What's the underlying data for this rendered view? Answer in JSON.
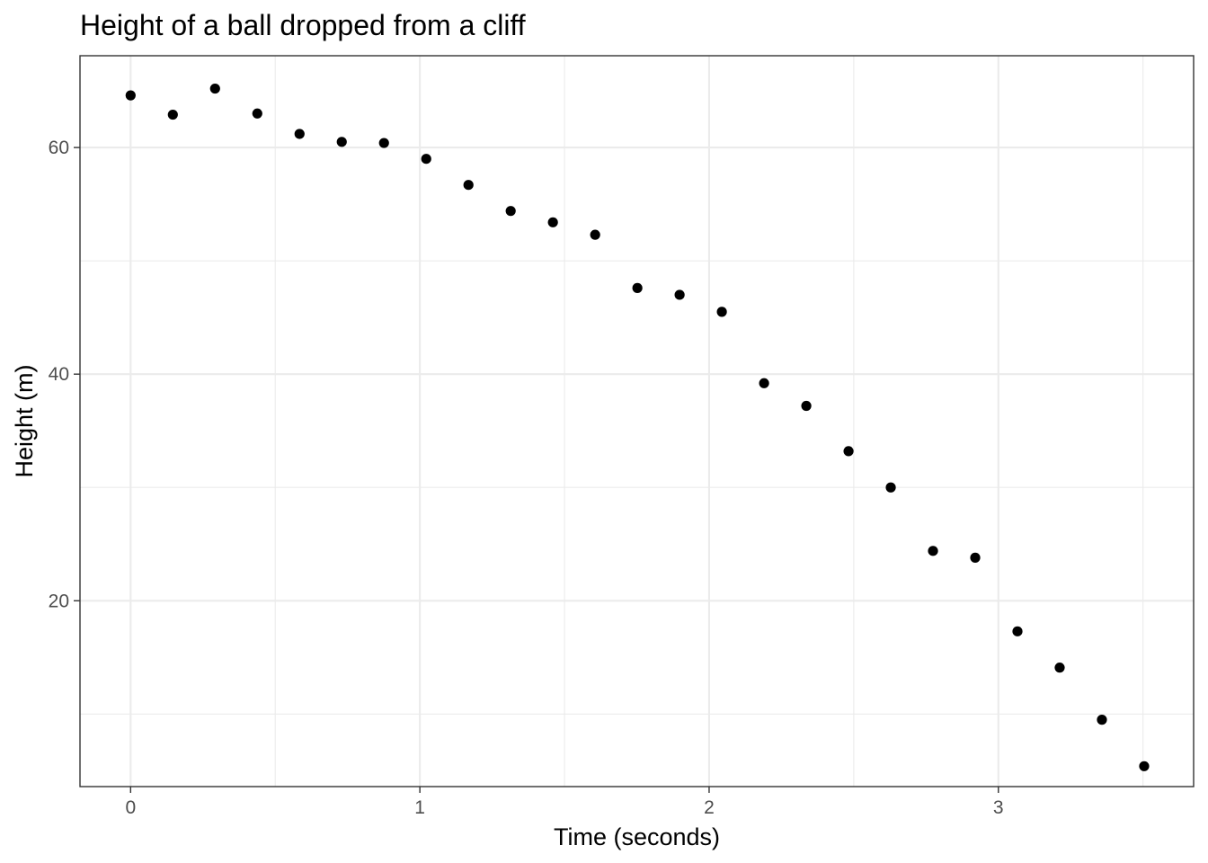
{
  "chart_data": {
    "type": "scatter",
    "title": "Height of a ball dropped from a cliff",
    "xlabel": "Time (seconds)",
    "ylabel": "Height (m)",
    "xlim": [
      -0.175,
      3.675
    ],
    "ylim": [
      3.6,
      68.1
    ],
    "x_ticks": [
      0,
      1,
      2,
      3
    ],
    "x_tick_labels": [
      "0",
      "1",
      "2",
      "3"
    ],
    "x_minor_ticks": [
      0.5,
      1.5,
      2.5,
      3.5
    ],
    "y_ticks": [
      20,
      40,
      60
    ],
    "y_tick_labels": [
      "20",
      "40",
      "60"
    ],
    "y_minor_ticks": [
      10,
      30,
      50
    ],
    "grid": true,
    "point_color": "#000000",
    "x": [
      0.0,
      0.146,
      0.292,
      0.438,
      0.584,
      0.73,
      0.876,
      1.022,
      1.168,
      1.314,
      1.46,
      1.606,
      1.752,
      1.898,
      2.044,
      2.19,
      2.336,
      2.482,
      2.628,
      2.774,
      2.92,
      3.066,
      3.212,
      3.358,
      3.504
    ],
    "y": [
      64.6,
      62.9,
      65.2,
      63.0,
      61.2,
      60.5,
      60.4,
      59.0,
      56.7,
      54.4,
      53.4,
      52.3,
      47.6,
      47.0,
      45.5,
      39.2,
      37.2,
      33.2,
      30.0,
      24.4,
      23.8,
      17.3,
      14.1,
      9.5,
      5.4
    ]
  }
}
